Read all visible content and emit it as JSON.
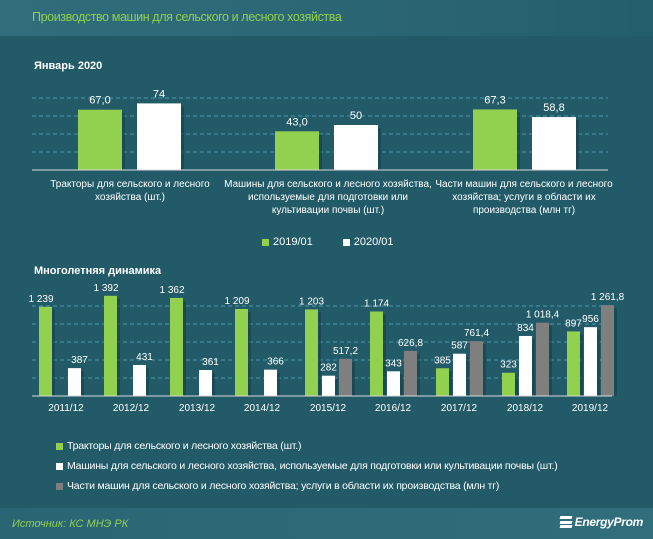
{
  "header": {
    "title": "Производство машин для сельского и лесного хозяйства"
  },
  "footer": {
    "source": "Источник: КС МНЭ РК",
    "logo_text": "EnergyProm",
    "logo_icon": "energyprom-logo-icon"
  },
  "colors": {
    "green": "#92d050",
    "white": "#ffffff",
    "gray": "#7f7f7f",
    "background": "#225a68",
    "title": "#8fd14f",
    "grid": "#4a9aae"
  },
  "chart_data": [
    {
      "type": "bar",
      "title": "Январь  2020",
      "categories": [
        "Тракторы для сельского и лесного хозяйства (шт.)",
        "Машины для сельского и лесного хозяйства, используемые для подготовки или культивации почвы (шт.)",
        "Части машин для сельского и лесного хозяйства; услуги в области их производства (млн тг)"
      ],
      "series": [
        {
          "name": "2019/01",
          "color": "#92d050",
          "values": [
            67.0,
            43.0,
            67.3
          ],
          "labels": [
            "67,0",
            "43,0",
            "67,3"
          ]
        },
        {
          "name": "2020/01",
          "color": "#ffffff",
          "values": [
            74,
            50,
            58.8
          ],
          "labels": [
            "74",
            "50",
            "58,8"
          ]
        }
      ],
      "ylim": [
        0,
        80
      ],
      "grid": true,
      "legend": "bottom"
    },
    {
      "type": "bar",
      "title": "Многолетняя  динамика",
      "categories": [
        "2011/12",
        "2012/12",
        "2013/12",
        "2014/12",
        "2015/12",
        "2016/12",
        "2017/12",
        "2018/12",
        "2019/12"
      ],
      "series": [
        {
          "name": "Тракторы для сельского и лесного хозяйства (шт.)",
          "color": "#92d050",
          "values": [
            1239,
            1392,
            1362,
            1209,
            1203,
            1174,
            385,
            323,
            897
          ],
          "labels": [
            "1 239",
            "1 392",
            "1 362",
            "1 209",
            "1 203",
            "1 174",
            "385",
            "323",
            "897"
          ]
        },
        {
          "name": "Машины для сельского и лесного хозяйства, используемые для подготовки или культивации почвы (шт.)",
          "color": "#ffffff",
          "values": [
            387,
            431,
            361,
            366,
            282,
            343,
            587,
            834,
            956
          ],
          "labels": [
            "387",
            "431",
            "361",
            "366",
            "282",
            "343",
            "587",
            "834",
            "956"
          ]
        },
        {
          "name": "Части машин для сельского и лесного хозяйства; услуги в области их производства (млн тг)",
          "color": "#7f7f7f",
          "values": [
            null,
            null,
            null,
            null,
            517.2,
            626.8,
            761.4,
            1018.4,
            1261.8
          ],
          "labels": [
            null,
            null,
            null,
            null,
            "517,2",
            "626,8",
            "761,4",
            "1 018,4",
            "1 261,8"
          ]
        }
      ],
      "ylim": [
        0,
        1500
      ],
      "grid": true,
      "legend": "bottom"
    }
  ]
}
